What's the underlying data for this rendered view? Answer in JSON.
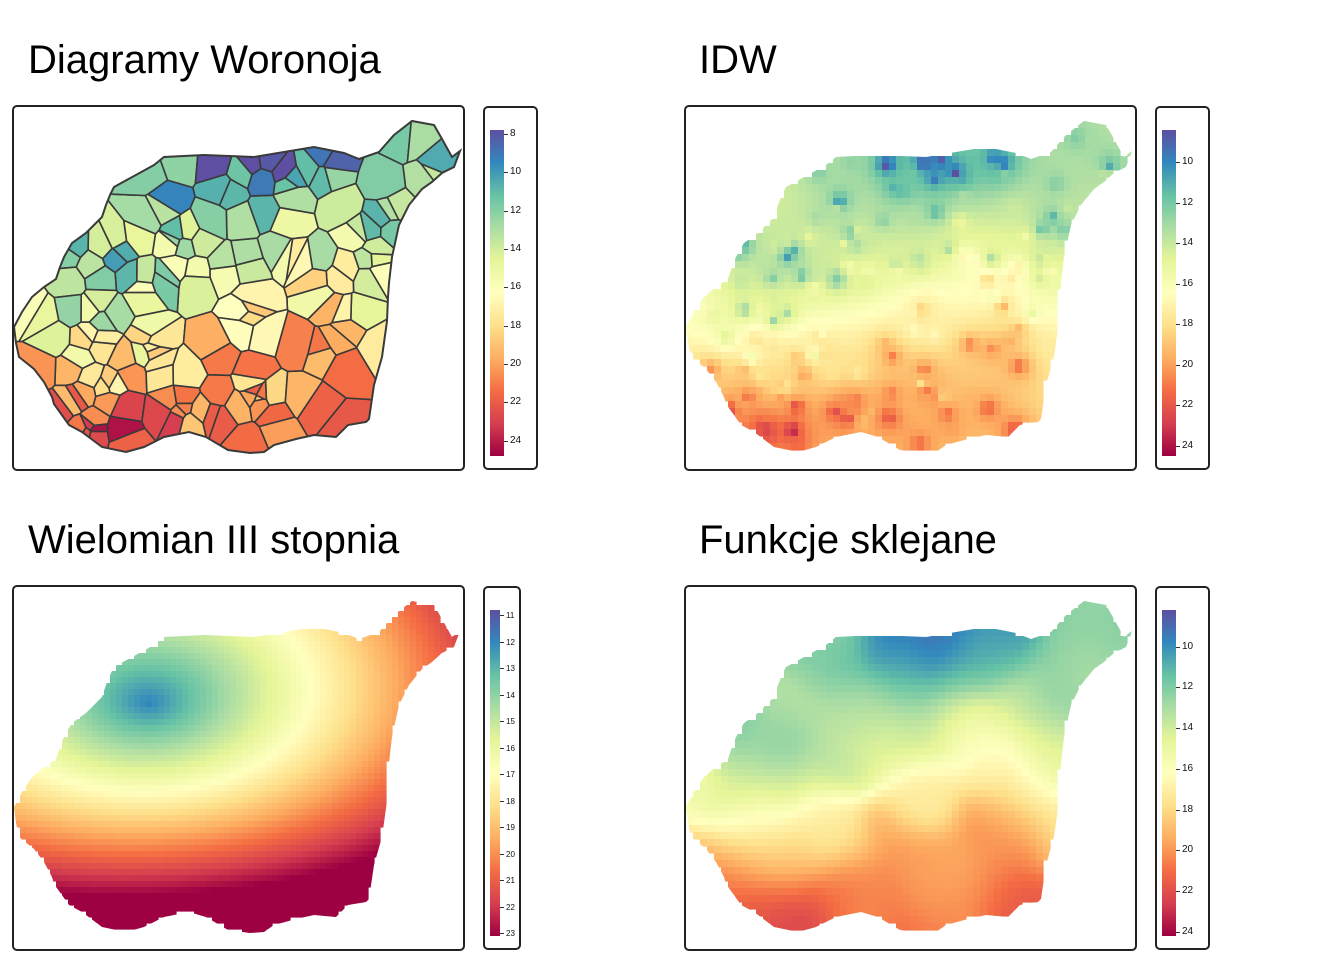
{
  "figure": {
    "palette": [
      "#5e4fa2",
      "#3288bd",
      "#66c2a5",
      "#abdda4",
      "#e6f598",
      "#ffffbf",
      "#fee08b",
      "#fdae61",
      "#f46d43",
      "#d53e4f",
      "#9e0142"
    ]
  },
  "panels": [
    {
      "id": "voronoi",
      "title": "Diagramy Woronoja",
      "legend": {
        "min": 7.8,
        "max": 24.8,
        "ticks": [
          "8",
          "10",
          "12",
          "14",
          "16",
          "18",
          "20",
          "22",
          "24"
        ],
        "tick_values": [
          8,
          10,
          12,
          14,
          16,
          18,
          20,
          22,
          24
        ]
      }
    },
    {
      "id": "idw",
      "title": "IDW",
      "legend": {
        "min": 8.4,
        "max": 24.5,
        "ticks": [
          "10",
          "12",
          "14",
          "16",
          "18",
          "20",
          "22",
          "24"
        ],
        "tick_values": [
          10,
          12,
          14,
          16,
          18,
          20,
          22,
          24
        ]
      }
    },
    {
      "id": "poly",
      "title": "Wielomian III stopnia",
      "legend": {
        "min": 10.8,
        "max": 23.1,
        "ticks": [
          "11",
          "12",
          "13",
          "14",
          "15",
          "16",
          "17",
          "18",
          "19",
          "20",
          "21",
          "22",
          "23"
        ],
        "tick_values": [
          11,
          12,
          13,
          14,
          15,
          16,
          17,
          18,
          19,
          20,
          21,
          22,
          23
        ]
      }
    },
    {
      "id": "spline",
      "title": "Funkcje sklejane",
      "legend": {
        "min": 8.2,
        "max": 24.2,
        "ticks": [
          "10",
          "12",
          "14",
          "16",
          "18",
          "20",
          "22",
          "24"
        ],
        "tick_values": [
          10,
          12,
          14,
          16,
          18,
          20,
          22,
          24
        ]
      }
    }
  ]
}
